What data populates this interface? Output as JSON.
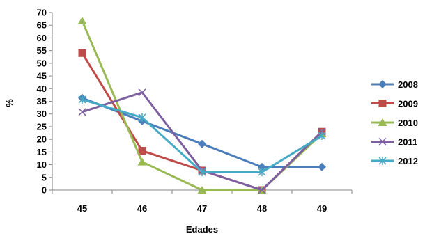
{
  "chart_data": {
    "type": "line",
    "title": "",
    "xlabel": "Edades",
    "ylabel": "%",
    "categories": [
      "45",
      "46",
      "47",
      "48",
      "49"
    ],
    "ylim": [
      0,
      70
    ],
    "yticks": [
      0,
      5,
      10,
      15,
      20,
      25,
      30,
      35,
      40,
      45,
      50,
      55,
      60,
      65,
      70
    ],
    "grid": false,
    "legend_position": "right",
    "series": [
      {
        "name": "2008",
        "color": "#4A7EBB",
        "marker": "diamond",
        "values": [
          36.3,
          27.2,
          18.2,
          9.1,
          9.1
        ]
      },
      {
        "name": "2009",
        "color": "#BE4B48",
        "marker": "square",
        "values": [
          54,
          15.5,
          7.7,
          0,
          23
        ]
      },
      {
        "name": "2010",
        "color": "#98B954",
        "marker": "triangle",
        "values": [
          66.7,
          11.1,
          0,
          0,
          22.2
        ]
      },
      {
        "name": "2011",
        "color": "#7D5FA0",
        "marker": "x",
        "values": [
          30.8,
          38.5,
          7.7,
          0,
          23
        ]
      },
      {
        "name": "2012",
        "color": "#46AAC5",
        "marker": "asterisk",
        "values": [
          35.7,
          28.6,
          7.1,
          7.1,
          21.4
        ]
      }
    ]
  }
}
